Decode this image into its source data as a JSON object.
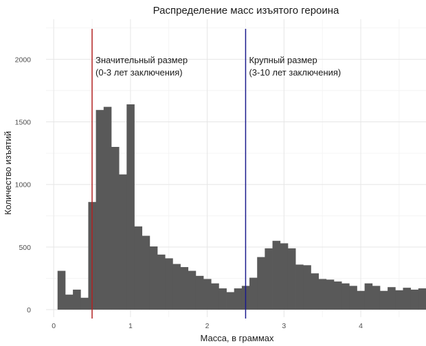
{
  "chart_data": {
    "type": "bar",
    "title": "Распределение масс изъятого героина",
    "xlabel": "Масса, в граммах",
    "ylabel": "Количество изъятий",
    "xlim": [
      -0.1,
      4.85
    ],
    "ylim": [
      -60,
      2320
    ],
    "x_ticks": [
      0,
      1,
      2,
      3,
      4
    ],
    "y_ticks": [
      0,
      500,
      1000,
      1500,
      2000
    ],
    "bin_width": 0.1,
    "bin_starts": [
      0.05,
      0.15,
      0.25,
      0.35,
      0.45,
      0.55,
      0.65,
      0.75,
      0.85,
      0.95,
      1.05,
      1.15,
      1.25,
      1.35,
      1.45,
      1.55,
      1.65,
      1.75,
      1.85,
      1.95,
      2.05,
      2.15,
      2.25,
      2.35,
      2.45,
      2.55,
      2.65,
      2.75,
      2.85,
      2.95,
      3.05,
      3.15,
      3.25,
      3.35,
      3.45,
      3.55,
      3.65,
      3.75,
      3.85,
      3.95,
      4.05,
      4.15,
      4.25,
      4.35,
      4.45,
      4.55,
      4.65,
      4.75
    ],
    "values": [
      310,
      120,
      160,
      95,
      860,
      1595,
      1620,
      1300,
      1080,
      1640,
      665,
      590,
      505,
      440,
      410,
      365,
      340,
      310,
      270,
      245,
      210,
      170,
      140,
      170,
      190,
      255,
      420,
      490,
      550,
      530,
      490,
      360,
      355,
      290,
      245,
      240,
      225,
      210,
      190,
      150,
      210,
      190,
      150,
      180,
      155,
      175,
      160,
      170
    ],
    "vlines": [
      {
        "x": 0.5,
        "color": "#b22222",
        "label_line1": "Значительный размер",
        "label_line2": "(0-3 лет заключения)"
      },
      {
        "x": 2.5,
        "color": "#1a1a8c",
        "label_line1": "Крупный размер",
        "label_line2": "(3-10 лет заключения)"
      }
    ],
    "grid": true,
    "legend": "none"
  }
}
